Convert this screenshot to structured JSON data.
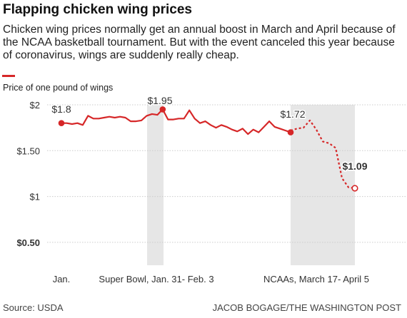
{
  "title": "Flapping chicken wing prices",
  "subtitle": "Chicken wing prices normally get an annual boost in March and April because of the NCAA basketball tournament. But with the event canceled this year because of coronavirus, wings are suddenly really cheap.",
  "source": "Source: USDA",
  "credit": "JACOB BOGAGE/THE WASHINGTON POST",
  "colors": {
    "accent": "#d62728",
    "shade": "#e6e6e6",
    "grid": "#cccccc"
  },
  "chart_data": {
    "type": "line",
    "ylabel": "Price of one pound of wings",
    "ylim": [
      0.25,
      2
    ],
    "yticks": [
      {
        "value": 2,
        "label": "$2",
        "bold": false
      },
      {
        "value": 1.5,
        "label": "$1.50",
        "bold": false
      },
      {
        "value": 1,
        "label": "$1",
        "bold": false
      },
      {
        "value": 0.5,
        "label": "$0.50",
        "bold": true
      }
    ],
    "xticks": [
      "Jan.",
      "Super Bowl, Jan. 31- Feb. 3",
      "NCAAs, March 17- April 5"
    ],
    "shaded_periods": [
      "Super Bowl, Jan. 31- Feb. 3",
      "NCAAs, March 17- April 5"
    ],
    "series": [
      {
        "style": "solid",
        "values": [
          1.8,
          1.8,
          1.79,
          1.8,
          1.78,
          1.88,
          1.85,
          1.85,
          1.86,
          1.87,
          1.86,
          1.87,
          1.86,
          1.82,
          1.82,
          1.83,
          1.88,
          1.9,
          1.89,
          1.95,
          1.84,
          1.84,
          1.85,
          1.85,
          1.94,
          1.85,
          1.8,
          1.82,
          1.78,
          1.75,
          1.78,
          1.76,
          1.73,
          1.71,
          1.74,
          1.68,
          1.73,
          1.7,
          1.76,
          1.82,
          1.76,
          1.74,
          1.72,
          1.7
        ]
      },
      {
        "style": "dashed",
        "values": [
          1.72,
          1.74,
          1.75,
          1.83,
          1.73,
          1.6,
          1.58,
          1.53,
          1.2,
          1.1,
          1.09
        ]
      }
    ],
    "annotations": [
      {
        "label": "$1.8",
        "value": 1.8,
        "bold": false
      },
      {
        "label": "$1.95",
        "value": 1.95,
        "bold": false
      },
      {
        "label": "$1.72",
        "value": 1.72,
        "bold": false
      },
      {
        "label": "$1.09",
        "value": 1.09,
        "bold": true
      }
    ]
  }
}
